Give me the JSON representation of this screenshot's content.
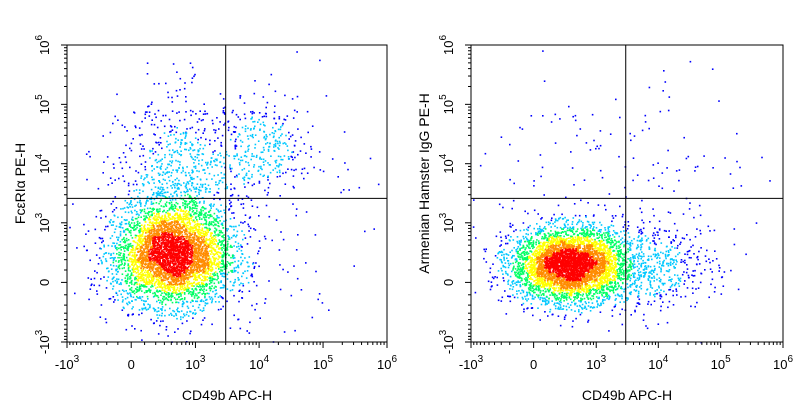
{
  "chart_data": [
    {
      "type": "scatter",
      "subtype": "flow-cytometry-density-dot-plot",
      "xlabel": "CD49b APC-H",
      "ylabel": "FcεRIα PE-H",
      "x_scale": "biexponential",
      "y_scale": "biexponential",
      "xlim": [
        -1000,
        1000000
      ],
      "ylim": [
        -1000,
        1000000
      ],
      "x_ticks": [
        {
          "value": -1000,
          "base": "-10",
          "exp": "3"
        },
        {
          "value": 0,
          "base": "0",
          "exp": ""
        },
        {
          "value": 1000,
          "base": "10",
          "exp": "3"
        },
        {
          "value": 10000,
          "base": "10",
          "exp": "4"
        },
        {
          "value": 100000,
          "base": "10",
          "exp": "5"
        },
        {
          "value": 1000000,
          "base": "10",
          "exp": "6"
        }
      ],
      "y_ticks": [
        {
          "value": -1000,
          "base": "-10",
          "exp": "3"
        },
        {
          "value": 0,
          "base": "0",
          "exp": ""
        },
        {
          "value": 1000,
          "base": "10",
          "exp": "3"
        },
        {
          "value": 10000,
          "base": "10",
          "exp": "4"
        },
        {
          "value": 100000,
          "base": "10",
          "exp": "5"
        },
        {
          "value": 1000000,
          "base": "10",
          "exp": "6"
        }
      ],
      "gate": {
        "x": 3000,
        "y": 2600
      },
      "populations": [
        {
          "name": "main-negative",
          "x_center": 400,
          "y_center": 250,
          "x_spread": 0.33,
          "y_spread": 0.3,
          "count": 4200
        },
        {
          "name": "upper-left-tail",
          "x_center": 600,
          "y_center": 3500,
          "x_spread": 0.35,
          "y_spread": 0.55,
          "count": 900
        },
        {
          "name": "upper-right-cluster",
          "x_center": 12000,
          "y_center": 20000,
          "x_spread": 0.25,
          "y_spread": 0.25,
          "count": 260
        },
        {
          "name": "scatter-sparse",
          "x_center": 3000,
          "y_center": 2000,
          "x_spread": 0.8,
          "y_spread": 1.0,
          "count": 260
        }
      ],
      "colors": [
        "#0000ff",
        "#00c8ff",
        "#00ff64",
        "#ffff00",
        "#ff8c00",
        "#ff0000"
      ]
    },
    {
      "type": "scatter",
      "subtype": "flow-cytometry-density-dot-plot",
      "xlabel": "CD49b APC-H",
      "ylabel": "Armenian Hamster IgG PE-H",
      "x_scale": "biexponential",
      "y_scale": "biexponential",
      "xlim": [
        -1000,
        1000000
      ],
      "ylim": [
        -1000,
        1000000
      ],
      "x_ticks": [
        {
          "value": -1000,
          "base": "-10",
          "exp": "3"
        },
        {
          "value": 0,
          "base": "0",
          "exp": ""
        },
        {
          "value": 1000,
          "base": "10",
          "exp": "3"
        },
        {
          "value": 10000,
          "base": "10",
          "exp": "4"
        },
        {
          "value": 100000,
          "base": "10",
          "exp": "5"
        },
        {
          "value": 1000000,
          "base": "10",
          "exp": "6"
        }
      ],
      "y_ticks": [
        {
          "value": -1000,
          "base": "-10",
          "exp": "3"
        },
        {
          "value": 0,
          "base": "0",
          "exp": ""
        },
        {
          "value": 1000,
          "base": "10",
          "exp": "3"
        },
        {
          "value": 10000,
          "base": "10",
          "exp": "4"
        },
        {
          "value": 100000,
          "base": "10",
          "exp": "5"
        },
        {
          "value": 1000000,
          "base": "10",
          "exp": "6"
        }
      ],
      "gate": {
        "x": 3000,
        "y": 2600
      },
      "populations": [
        {
          "name": "main-negative",
          "x_center": 350,
          "y_center": 150,
          "x_spread": 0.33,
          "y_spread": 0.22,
          "count": 4600
        },
        {
          "name": "right-shoulder",
          "x_center": 9000,
          "y_center": 150,
          "x_spread": 0.35,
          "y_spread": 0.25,
          "count": 450
        },
        {
          "name": "scatter-sparse",
          "x_center": 2500,
          "y_center": 2500,
          "x_spread": 0.8,
          "y_spread": 0.9,
          "count": 220
        }
      ],
      "colors": [
        "#0000ff",
        "#00c8ff",
        "#00ff64",
        "#ffff00",
        "#ff8c00",
        "#ff0000"
      ]
    }
  ]
}
